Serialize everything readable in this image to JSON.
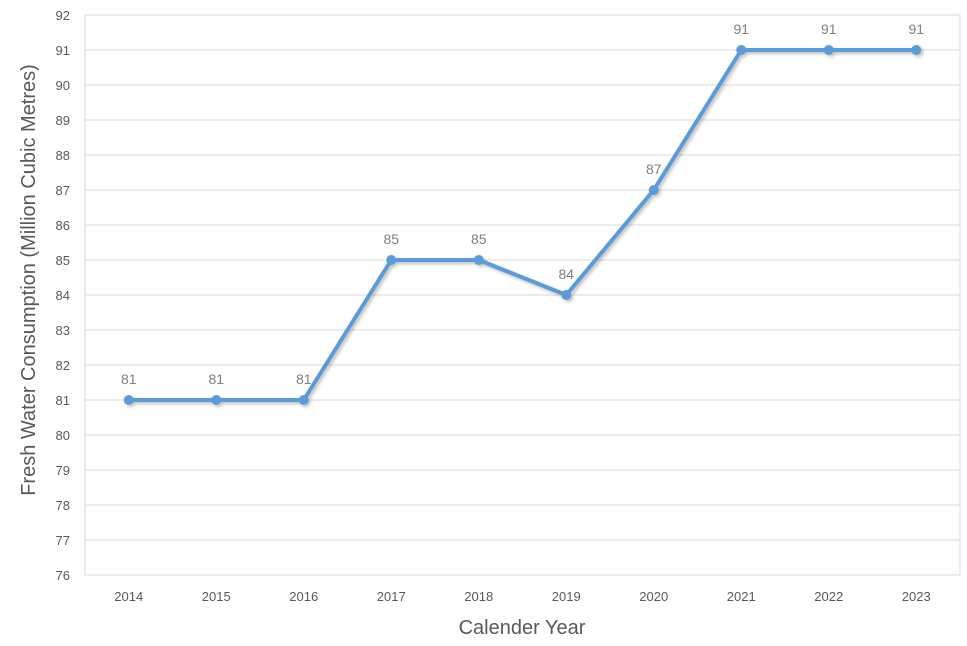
{
  "chart_data": {
    "type": "line",
    "title": "",
    "xlabel": "Calender Year",
    "ylabel": "Fresh Water Consumption  (Million Cubic Metres)",
    "categories": [
      "2014",
      "2015",
      "2016",
      "2017",
      "2018",
      "2019",
      "2020",
      "2021",
      "2022",
      "2023"
    ],
    "series": [
      {
        "values": [
          81,
          81,
          81,
          85,
          85,
          84,
          87,
          91,
          91,
          91
        ],
        "color": "#5b9bd5"
      }
    ],
    "ylim": [
      76,
      92
    ],
    "yticks": [
      76,
      77,
      78,
      79,
      80,
      81,
      82,
      83,
      84,
      85,
      86,
      87,
      88,
      89,
      90,
      91,
      92
    ],
    "grid": "horizontal",
    "legend": "none",
    "data_labels": true
  }
}
